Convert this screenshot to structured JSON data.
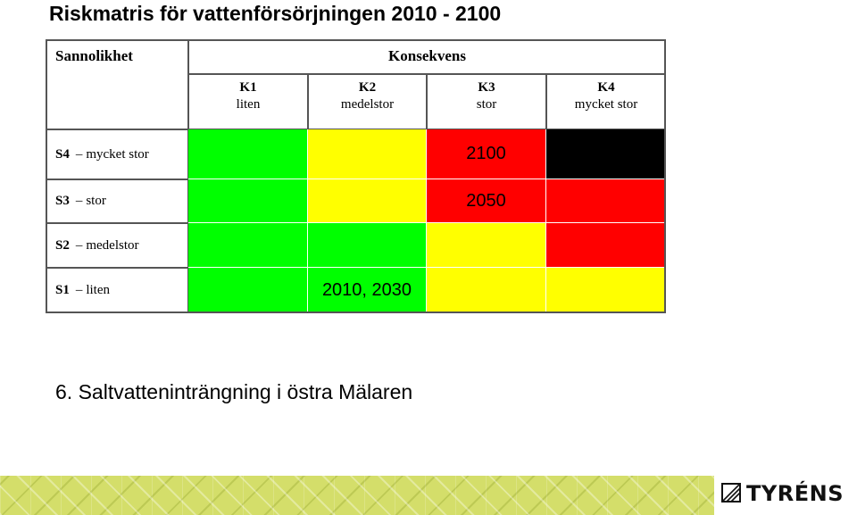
{
  "title": "Riskmatris för vattenförsörjningen 2010 - 2100",
  "matrix": {
    "row_header": "Sannolikhet",
    "col_header": "Konsekvens",
    "columns": [
      {
        "code": "K1",
        "label": "liten"
      },
      {
        "code": "K2",
        "label": "medelstor"
      },
      {
        "code": "K3",
        "label": "stor"
      },
      {
        "code": "K4",
        "label": "mycket stor"
      }
    ],
    "rows": [
      {
        "code": "S4",
        "dash": "–",
        "label": "mycket stor"
      },
      {
        "code": "S3",
        "dash": "–",
        "label": "stor"
      },
      {
        "code": "S2",
        "dash": "–",
        "label": "medelstor"
      },
      {
        "code": "S1",
        "dash": "–",
        "label": "liten"
      }
    ],
    "colors": {
      "green": "#00ff00",
      "yellow": "#ffff00",
      "red": "#ff0000",
      "black": "#000000"
    },
    "grid": [
      [
        "green",
        "yellow",
        "red",
        "black"
      ],
      [
        "green",
        "yellow",
        "red",
        "red"
      ],
      [
        "green",
        "green",
        "yellow",
        "red"
      ],
      [
        "green",
        "green",
        "yellow",
        "yellow"
      ]
    ],
    "marks": {
      "s4_k3": "2100",
      "s3_k3": "2050",
      "s1_k2": "2010, 2030"
    }
  },
  "caption": "6.  Saltvatteninträngning i östra Mälaren",
  "footer": {
    "logo_text": "TYRÉNS",
    "logo_icon": "tyrens-logo-icon",
    "pattern_color": "#d4de6a"
  }
}
